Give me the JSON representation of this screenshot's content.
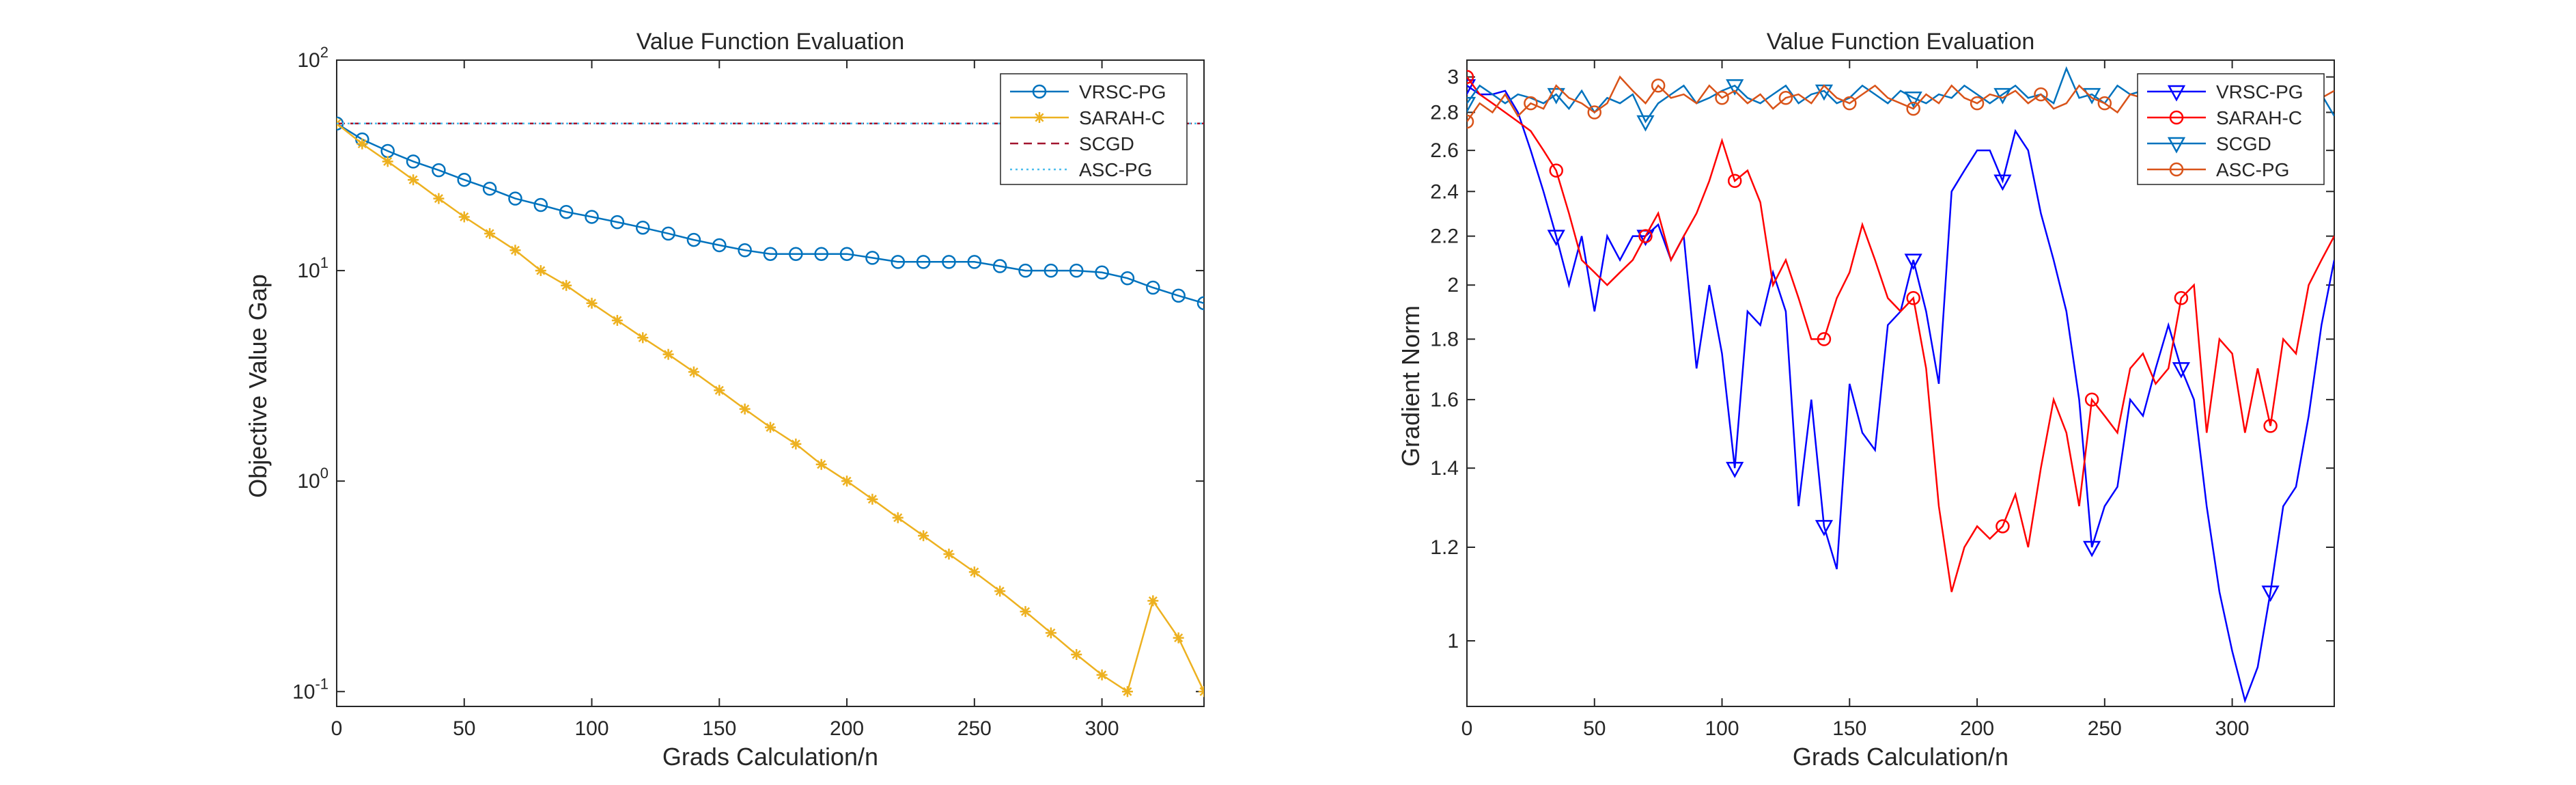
{
  "chart_data": [
    {
      "type": "line",
      "title": "Value Function Evaluation",
      "xlabel": "Grads Calculation/n",
      "ylabel": "Objective Value Gap",
      "xlim": [
        0,
        340
      ],
      "ylim": [
        0.085,
        100
      ],
      "yscale": "log",
      "xticks": [
        0,
        50,
        100,
        150,
        200,
        250,
        300
      ],
      "xtick_labels": [
        "0",
        "50",
        "100",
        "150",
        "200",
        "250",
        "300"
      ],
      "yticks": [
        0.1,
        1,
        10,
        100
      ],
      "ytick_labels": [
        {
          "base": "10",
          "exp": "-1"
        },
        {
          "base": "10",
          "exp": "0"
        },
        {
          "base": "10",
          "exp": "1"
        },
        {
          "base": "10",
          "exp": "2"
        }
      ],
      "legend_position": "top-right",
      "series": [
        {
          "name": "VRSC-PG",
          "color": "#0072bd",
          "marker": "circle",
          "line_style": "solid",
          "x": [
            0,
            10,
            20,
            30,
            40,
            50,
            60,
            70,
            80,
            90,
            100,
            110,
            120,
            130,
            140,
            150,
            160,
            170,
            180,
            190,
            200,
            210,
            220,
            230,
            240,
            250,
            260,
            270,
            280,
            290,
            300,
            310,
            320,
            330,
            340
          ],
          "y": [
            50,
            42,
            37,
            33,
            30,
            27,
            24.5,
            22,
            20.5,
            19,
            18,
            17,
            16,
            15,
            14,
            13.2,
            12.5,
            12,
            12,
            12,
            12,
            11.5,
            11,
            11,
            11,
            11,
            10.5,
            10,
            10,
            10,
            9.8,
            9.2,
            8.3,
            7.6,
            7
          ]
        },
        {
          "name": "SARAH-C",
          "color": "#edb120",
          "marker": "star",
          "line_style": "solid",
          "x": [
            0,
            10,
            20,
            30,
            40,
            50,
            60,
            70,
            80,
            90,
            100,
            110,
            120,
            130,
            140,
            150,
            160,
            170,
            180,
            190,
            200,
            210,
            220,
            230,
            240,
            250,
            260,
            270,
            280,
            290,
            300,
            310,
            320,
            330,
            340
          ],
          "y": [
            50,
            40,
            33,
            27,
            22,
            18,
            15,
            12.5,
            10,
            8.5,
            7,
            5.8,
            4.8,
            4,
            3.3,
            2.7,
            2.2,
            1.8,
            1.5,
            1.2,
            1,
            0.82,
            0.67,
            0.55,
            0.45,
            0.37,
            0.3,
            0.24,
            0.19,
            0.15,
            0.12,
            0.1,
            0.27,
            0.18,
            0.1
          ]
        },
        {
          "name": "SCGD",
          "color": "#a2142f",
          "marker": "none",
          "line_style": "dashed",
          "x": [
            0,
            340
          ],
          "y": [
            50,
            50
          ]
        },
        {
          "name": "ASC-PG",
          "color": "#4dbeee",
          "marker": "none",
          "line_style": "dotted",
          "x": [
            0,
            340
          ],
          "y": [
            50,
            50
          ]
        }
      ]
    },
    {
      "type": "line",
      "title": "Value Function Evaluation",
      "xlabel": "Grads Calculation/n",
      "ylabel": "Gradient Norm",
      "xlim": [
        0,
        340
      ],
      "ylim": [
        0.88,
        3.1
      ],
      "yscale": "log",
      "xticks": [
        0,
        50,
        100,
        150,
        200,
        250,
        300
      ],
      "xtick_labels": [
        "0",
        "50",
        "100",
        "150",
        "200",
        "250",
        "300"
      ],
      "yticks": [
        1,
        1.2,
        1.4,
        1.6,
        1.8,
        2,
        2.2,
        2.4,
        2.6,
        2.8,
        3
      ],
      "ytick_labels": [
        "1",
        "1.2",
        "1.4",
        "1.6",
        "1.8",
        "2",
        "2.2",
        "2.4",
        "2.6",
        "2.8",
        "3"
      ],
      "legend_position": "top-right",
      "series": [
        {
          "name": "VRSC-PG",
          "color": "#0000ff",
          "marker": "triangle-down",
          "marker_every": 7,
          "line_style": "solid",
          "x": [
            0,
            5,
            10,
            15,
            20,
            25,
            30,
            35,
            40,
            45,
            50,
            55,
            60,
            65,
            70,
            75,
            80,
            85,
            90,
            95,
            100,
            105,
            110,
            115,
            120,
            125,
            130,
            135,
            140,
            145,
            150,
            155,
            160,
            165,
            170,
            175,
            180,
            185,
            190,
            195,
            200,
            205,
            210,
            215,
            220,
            225,
            230,
            235,
            240,
            245,
            250,
            255,
            260,
            265,
            270,
            275,
            280,
            285,
            290,
            295,
            300,
            305,
            310,
            315,
            320,
            325,
            330,
            335,
            340
          ],
          "y": [
            2.95,
            2.9,
            2.9,
            2.92,
            2.8,
            2.6,
            2.4,
            2.2,
            2.0,
            2.2,
            1.9,
            2.2,
            2.1,
            2.2,
            2.2,
            2.25,
            2.1,
            2.2,
            1.7,
            2.0,
            1.75,
            1.4,
            1.9,
            1.85,
            2.05,
            1.9,
            1.3,
            1.6,
            1.25,
            1.15,
            1.65,
            1.5,
            1.45,
            1.85,
            1.9,
            2.1,
            1.9,
            1.65,
            2.4,
            2.5,
            2.6,
            2.6,
            2.45,
            2.7,
            2.6,
            2.3,
            2.1,
            1.9,
            1.6,
            1.2,
            1.3,
            1.35,
            1.6,
            1.55,
            1.7,
            1.85,
            1.7,
            1.6,
            1.3,
            1.1,
            0.98,
            0.89,
            0.95,
            1.1,
            1.3,
            1.35,
            1.55,
            1.85,
            2.1
          ]
        },
        {
          "name": "SARAH-C",
          "color": "#ff0000",
          "marker": "circle",
          "marker_every": 7,
          "line_style": "solid",
          "x": [
            0,
            5,
            10,
            15,
            20,
            25,
            30,
            35,
            40,
            45,
            50,
            55,
            60,
            65,
            70,
            75,
            80,
            85,
            90,
            95,
            100,
            105,
            110,
            115,
            120,
            125,
            130,
            135,
            140,
            145,
            150,
            155,
            160,
            165,
            170,
            175,
            180,
            185,
            190,
            195,
            200,
            205,
            210,
            215,
            220,
            225,
            230,
            235,
            240,
            245,
            250,
            255,
            260,
            265,
            270,
            275,
            280,
            285,
            290,
            295,
            300,
            305,
            310,
            315,
            320,
            325,
            330,
            335,
            340
          ],
          "y": [
            3.0,
            2.9,
            2.85,
            2.8,
            2.75,
            2.7,
            2.6,
            2.5,
            2.3,
            2.1,
            2.05,
            2.0,
            2.05,
            2.1,
            2.2,
            2.3,
            2.1,
            2.2,
            2.3,
            2.45,
            2.65,
            2.45,
            2.5,
            2.35,
            2.0,
            2.1,
            1.95,
            1.8,
            1.8,
            1.95,
            2.05,
            2.25,
            2.1,
            1.95,
            1.9,
            1.95,
            1.7,
            1.3,
            1.1,
            1.2,
            1.25,
            1.22,
            1.25,
            1.33,
            1.2,
            1.4,
            1.6,
            1.5,
            1.3,
            1.6,
            1.55,
            1.5,
            1.7,
            1.75,
            1.65,
            1.7,
            1.95,
            2.0,
            1.5,
            1.8,
            1.75,
            1.5,
            1.7,
            1.52,
            1.8,
            1.75,
            2.0,
            2.1,
            2.2
          ]
        },
        {
          "name": "SCGD",
          "color": "#0072bd",
          "marker": "triangle-down",
          "marker_every": 7,
          "line_style": "solid",
          "x": [
            0,
            5,
            10,
            15,
            20,
            25,
            30,
            35,
            40,
            45,
            50,
            55,
            60,
            65,
            70,
            75,
            80,
            85,
            90,
            95,
            100,
            105,
            110,
            115,
            120,
            125,
            130,
            135,
            140,
            145,
            150,
            155,
            160,
            165,
            170,
            175,
            180,
            185,
            190,
            195,
            200,
            205,
            210,
            215,
            220,
            225,
            230,
            235,
            240,
            245,
            250,
            255,
            260,
            265,
            270,
            275,
            280,
            285,
            290,
            295,
            300,
            305,
            310,
            315,
            320,
            325,
            330,
            335,
            340
          ],
          "y": [
            2.85,
            2.95,
            2.9,
            2.85,
            2.9,
            2.88,
            2.85,
            2.9,
            2.82,
            2.92,
            2.8,
            2.88,
            2.85,
            2.9,
            2.75,
            2.85,
            2.9,
            2.95,
            2.85,
            2.88,
            2.92,
            2.95,
            2.88,
            2.85,
            2.9,
            2.95,
            2.85,
            2.9,
            2.92,
            2.85,
            2.88,
            2.95,
            2.9,
            2.85,
            2.92,
            2.88,
            2.85,
            2.9,
            2.88,
            2.95,
            2.9,
            2.85,
            2.9,
            2.95,
            2.88,
            2.9,
            2.85,
            3.05,
            2.88,
            2.9,
            2.85,
            2.95,
            2.9,
            2.92,
            2.85,
            2.9,
            2.88,
            2.95,
            2.9,
            2.85,
            2.92,
            2.9,
            2.88,
            2.95,
            2.85,
            2.9,
            2.88,
            2.9,
            2.78
          ]
        },
        {
          "name": "ASC-PG",
          "color": "#d95319",
          "marker": "circle",
          "marker_every": 5,
          "line_style": "solid",
          "x": [
            0,
            5,
            10,
            15,
            20,
            25,
            30,
            35,
            40,
            45,
            50,
            55,
            60,
            65,
            70,
            75,
            80,
            85,
            90,
            95,
            100,
            105,
            110,
            115,
            120,
            125,
            130,
            135,
            140,
            145,
            150,
            155,
            160,
            165,
            170,
            175,
            180,
            185,
            190,
            195,
            200,
            205,
            210,
            215,
            220,
            225,
            230,
            235,
            240,
            245,
            250,
            255,
            260,
            265,
            270,
            275,
            280,
            285,
            290,
            295,
            300,
            305,
            310,
            315,
            320,
            325,
            330,
            335,
            340
          ],
          "y": [
            2.75,
            2.85,
            2.8,
            2.9,
            2.78,
            2.85,
            2.82,
            2.95,
            2.88,
            2.85,
            2.8,
            2.85,
            3.0,
            2.92,
            2.85,
            2.95,
            2.88,
            2.9,
            2.85,
            2.95,
            2.88,
            2.92,
            2.85,
            2.9,
            2.82,
            2.88,
            2.9,
            2.85,
            2.95,
            2.88,
            2.85,
            2.9,
            2.95,
            2.88,
            2.85,
            2.82,
            2.9,
            2.85,
            2.95,
            2.88,
            2.85,
            2.9,
            2.88,
            2.92,
            2.85,
            2.9,
            2.82,
            2.85,
            2.95,
            2.88,
            2.85,
            2.8,
            2.9,
            2.88,
            2.85,
            2.9,
            2.88,
            2.92,
            2.85,
            2.9,
            2.88,
            2.85,
            2.92,
            2.88,
            2.9,
            2.85,
            2.9,
            2.88,
            2.92
          ]
        }
      ]
    }
  ]
}
